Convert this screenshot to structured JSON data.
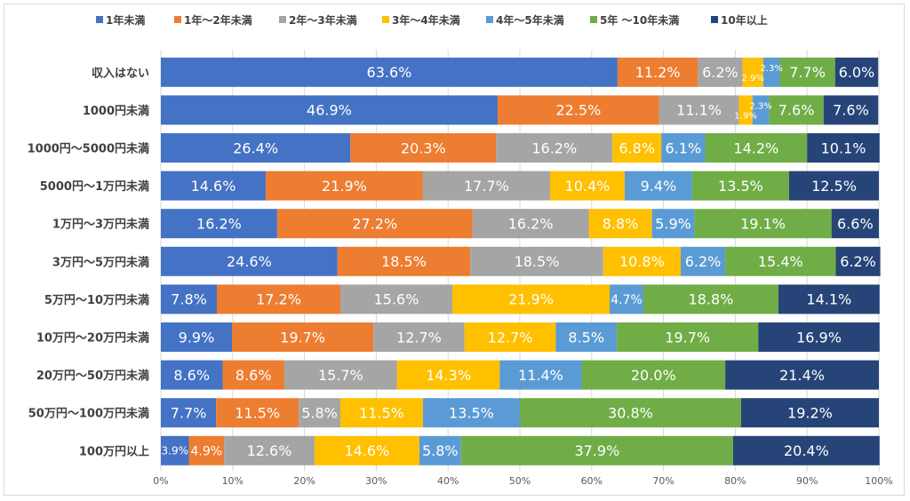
{
  "chart_data": {
    "type": "bar",
    "orientation": "horizontal",
    "stacked": true,
    "percent_scale": true,
    "legend_position": "top",
    "grid": true,
    "xlim": [
      0,
      100
    ],
    "x_ticks": [
      "0%",
      "10%",
      "20%",
      "30%",
      "40%",
      "50%",
      "60%",
      "70%",
      "80%",
      "90%",
      "100%"
    ],
    "categories": [
      "収入はない",
      "1000円未満",
      "1000円～5000円未満",
      "5000円～1万円未満",
      "1万円～3万円未満",
      "3万円～5万円未満",
      "5万円～10万円未満",
      "10万円～20万円未満",
      "20万円～50万円未満",
      "50万円～100万円未満",
      "100万円以上"
    ],
    "series": [
      {
        "name": "1年未満",
        "color": "#4472C4",
        "values": [
          63.6,
          46.9,
          26.4,
          14.6,
          16.2,
          24.6,
          7.8,
          9.9,
          8.6,
          7.7,
          3.9
        ]
      },
      {
        "name": "1年～2年未満",
        "color": "#ED7D31",
        "values": [
          11.2,
          22.5,
          20.3,
          21.9,
          27.2,
          18.5,
          17.2,
          19.7,
          8.6,
          11.5,
          4.9
        ]
      },
      {
        "name": "2年～3年未満",
        "color": "#A5A5A5",
        "values": [
          6.2,
          11.1,
          16.2,
          17.7,
          16.2,
          18.5,
          15.6,
          12.7,
          15.7,
          5.8,
          12.6
        ]
      },
      {
        "name": "3年～4年未満",
        "color": "#FFC000",
        "values": [
          2.9,
          1.9,
          6.8,
          10.4,
          8.8,
          10.8,
          21.9,
          12.7,
          14.3,
          11.5,
          14.6
        ]
      },
      {
        "name": "4年～5年未満",
        "color": "#5B9BD5",
        "values": [
          2.3,
          2.3,
          6.1,
          9.4,
          5.9,
          6.2,
          4.7,
          8.5,
          11.4,
          13.5,
          5.8
        ]
      },
      {
        "name": "5年 ～10年未満",
        "color": "#70AD47",
        "values": [
          7.7,
          7.6,
          14.2,
          13.5,
          19.1,
          15.4,
          18.8,
          19.7,
          20.0,
          30.8,
          37.9
        ]
      },
      {
        "name": "10年以上",
        "color": "#264478",
        "values": [
          6.0,
          7.6,
          10.1,
          12.5,
          6.6,
          6.2,
          14.1,
          16.9,
          21.4,
          19.2,
          20.4
        ]
      }
    ]
  }
}
